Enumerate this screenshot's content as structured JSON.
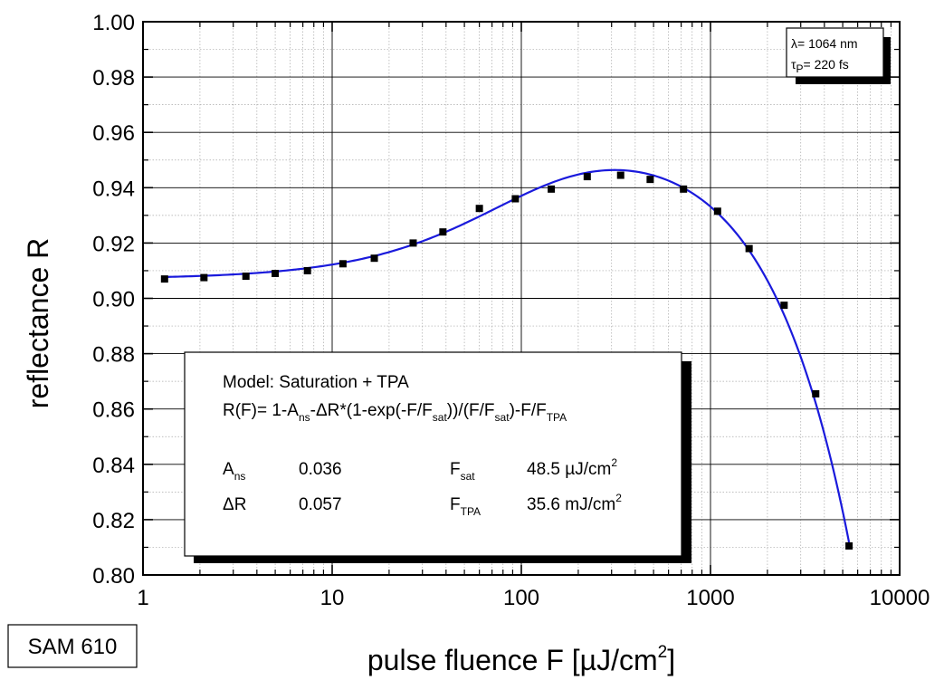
{
  "chart_data": {
    "type": "scatter",
    "xlabel": "pulse fluence F [µJ/cm²]",
    "ylabel": "reflectance R",
    "x_scale": "log",
    "xlim": [
      1,
      10000
    ],
    "ylim": [
      0.8,
      1.0
    ],
    "x_ticks": [
      "1",
      "10",
      "100",
      "1000",
      "10000"
    ],
    "y_ticks": [
      "0.80",
      "0.82",
      "0.84",
      "0.86",
      "0.88",
      "0.90",
      "0.92",
      "0.94",
      "0.96",
      "0.98",
      "1.00"
    ],
    "grid": true,
    "series": [
      {
        "type": "scatter",
        "x": [
          1.3,
          2.1,
          3.5,
          5.0,
          7.4,
          11.4,
          16.7,
          26.8,
          38.5,
          60.0,
          93.0,
          144.0,
          223.0,
          335.0,
          480.0,
          720.0,
          1090.0,
          1600.0,
          2450.0,
          3600.0,
          5400.0
        ],
        "y": [
          0.907,
          0.9075,
          0.908,
          0.909,
          0.91,
          0.9125,
          0.9145,
          0.92,
          0.924,
          0.9325,
          0.936,
          0.9395,
          0.944,
          0.9445,
          0.943,
          0.9395,
          0.9315,
          0.918,
          0.8975,
          0.8655,
          0.8105
        ]
      },
      {
        "type": "line",
        "color": "#1a1adc",
        "model": {
          "A_ns": 0.036,
          "dR": 0.057,
          "F_sat": 48.5,
          "F_TPA": 35600
        },
        "x_range": [
          1.3,
          5400
        ]
      }
    ],
    "annotation": {
      "line1": "λ= 1064 nm",
      "line2_symbol": "τ",
      "line2_sub": "P",
      "line2_rest": "= 220 fs"
    },
    "fit_box": {
      "model_title": "Model: Saturation + TPA",
      "formula": {
        "p1": "R(F)= 1-A",
        "s1": "ns",
        "p2": "-ΔR*(1-exp(-F/F",
        "s2": "sat",
        "p3": "))/(F/F",
        "s3": "sat",
        "p4": ")-F/F",
        "s4": "TPA"
      },
      "params": [
        {
          "name": "A",
          "sub": "ns",
          "value": "0.036"
        },
        {
          "name": "ΔR",
          "sub": "",
          "value": "0.057"
        },
        {
          "name": "F",
          "sub": "sat",
          "value": "48.5 µJ/cm",
          "sup": "2"
        },
        {
          "name": "F",
          "sub": "TPA",
          "value": "35.6 mJ/cm",
          "sup": "2"
        }
      ]
    },
    "sample_tag": "SAM 610"
  },
  "xlabel_parts": {
    "main": "pulse fluence F [µJ/cm",
    "sup": "2",
    "end": "]"
  }
}
